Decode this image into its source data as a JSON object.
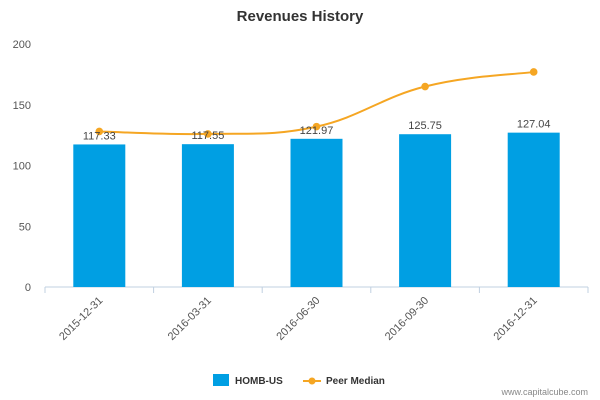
{
  "chart_data": {
    "type": "bar",
    "title": "Revenues History",
    "categories": [
      "2015-12-31",
      "2016-03-31",
      "2016-06-30",
      "2016-09-30",
      "2016-12-31"
    ],
    "ylim": [
      0,
      200
    ],
    "yticks": [
      0,
      50,
      100,
      150,
      200
    ],
    "grid": false,
    "legend_position": "bottom-center",
    "series": [
      {
        "name": "HOMB-US",
        "type": "bar",
        "color": "#009fe3",
        "values": [
          117.33,
          117.55,
          121.97,
          125.75,
          127.04
        ],
        "labels": [
          "117.33",
          "117.55",
          "121.97",
          "125.75",
          "127.04"
        ]
      },
      {
        "name": "Peer Median",
        "type": "line",
        "color": "#f5a623",
        "values": [
          128,
          126,
          132,
          165,
          177
        ]
      }
    ]
  },
  "credit": "www.capitalcube.com"
}
